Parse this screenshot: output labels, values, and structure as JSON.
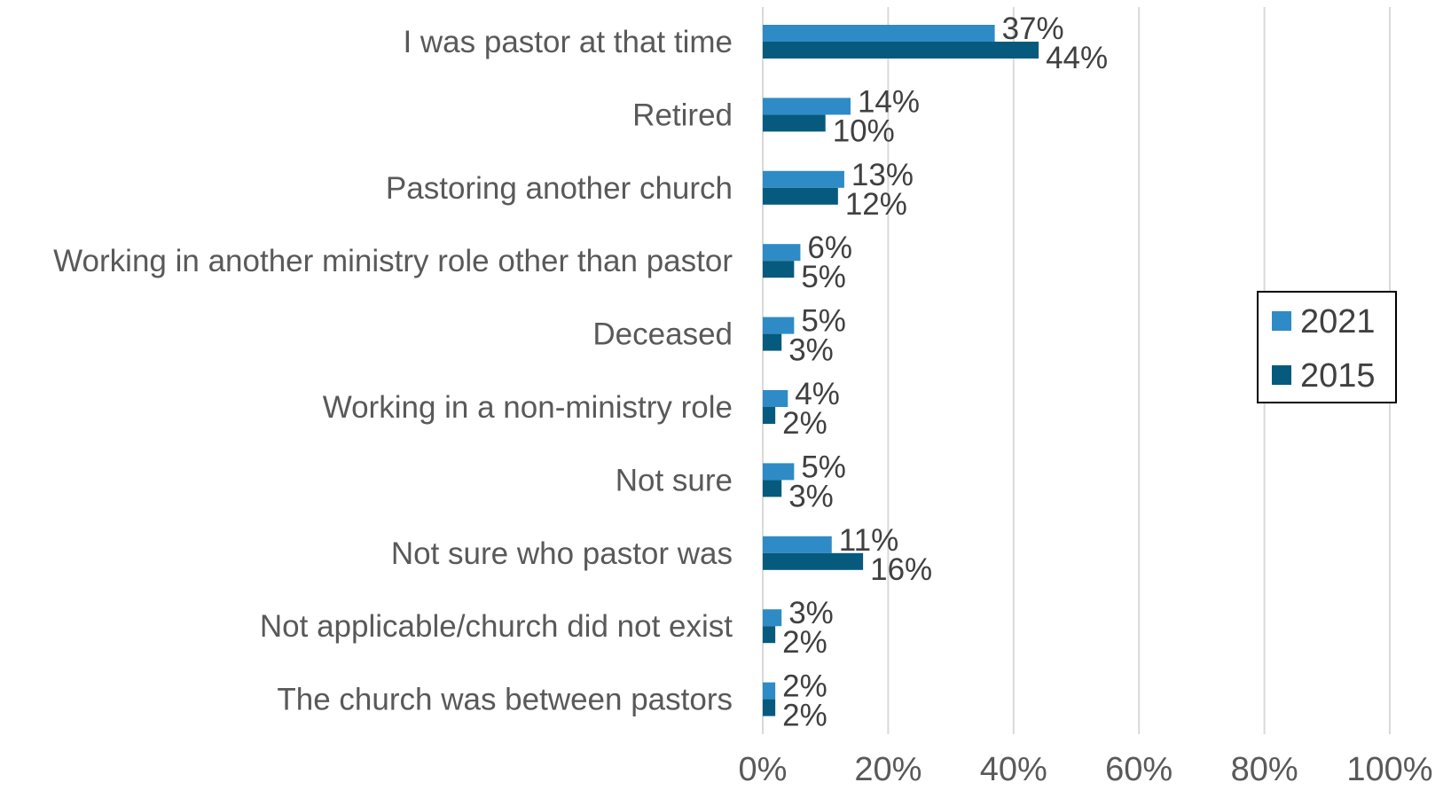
{
  "chart_data": {
    "type": "bar",
    "orientation": "horizontal",
    "categories": [
      "I was pastor at that time",
      "Retired",
      "Pastoring another church",
      "Working in another ministry role other than pastor",
      "Deceased",
      "Working in a non-ministry role",
      "Not sure",
      "Not sure who pastor was",
      "Not applicable/church did not exist",
      "The church was between pastors"
    ],
    "series": [
      {
        "name": "2021",
        "color": "#2e8bc6",
        "values": [
          37,
          14,
          13,
          6,
          5,
          4,
          5,
          11,
          3,
          2
        ],
        "labels": [
          "37%",
          "14%",
          "13%",
          "6%",
          "5%",
          "4%",
          "5%",
          "11%",
          "3%",
          "2%"
        ]
      },
      {
        "name": "2015",
        "color": "#065a7e",
        "values": [
          44,
          10,
          12,
          5,
          3,
          2,
          3,
          16,
          2,
          2
        ],
        "labels": [
          "44%",
          "10%",
          "12%",
          "5%",
          "3%",
          "2%",
          "3%",
          "16%",
          "2%",
          "2%"
        ]
      }
    ],
    "xlim": [
      0,
      100
    ],
    "xticks": [
      "0%",
      "20%",
      "40%",
      "60%",
      "80%",
      "100%"
    ],
    "grid": true,
    "legend_position": "right",
    "title": "",
    "xlabel": "",
    "ylabel": ""
  }
}
